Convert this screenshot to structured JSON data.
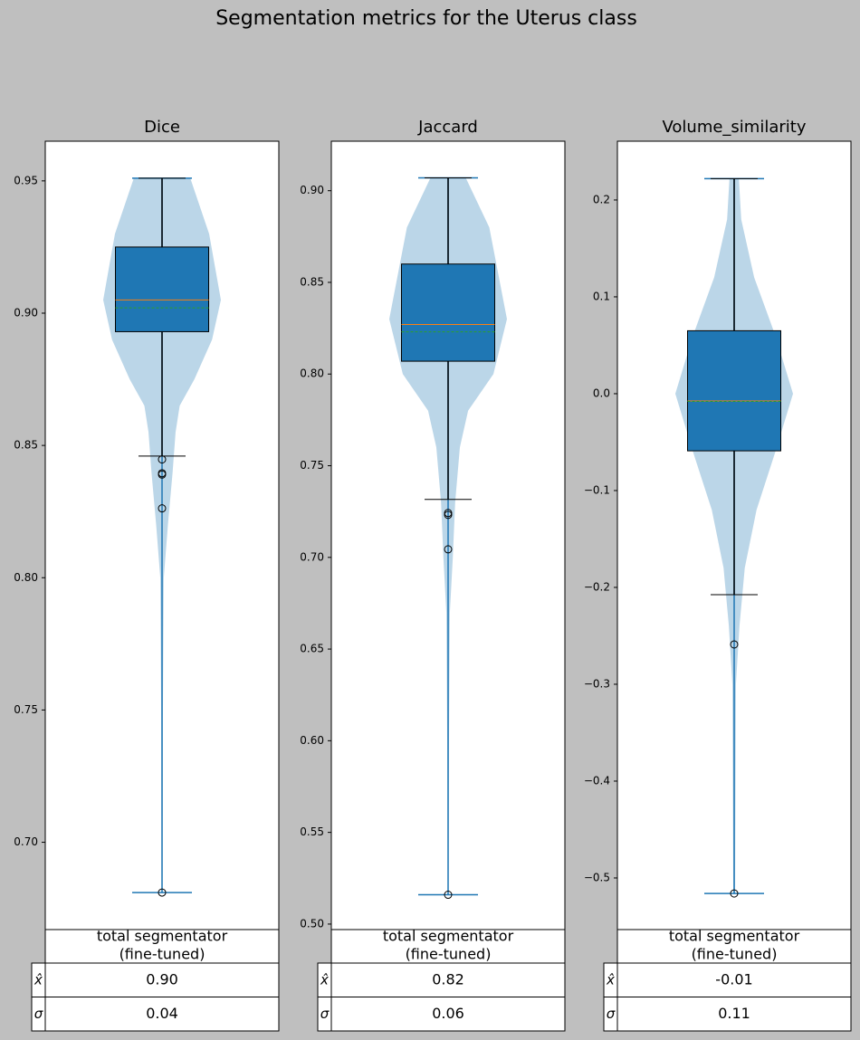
{
  "title": "Segmentation metrics for the Uterus class",
  "chart_data": [
    {
      "type": "violin",
      "title": "Dice",
      "ylim": [
        0.667,
        0.965
      ],
      "yticks": [
        {
          "value": 0.7,
          "label": "0.70"
        },
        0.75,
        {
          "value": 0.8,
          "label": "0.80"
        },
        0.85,
        {
          "value": 0.9,
          "label": "0.90"
        },
        0.95
      ],
      "stats": {
        "min": 0.681,
        "q1": 0.893,
        "median": 0.905,
        "mean": 0.902,
        "q3": 0.925,
        "max": 0.951,
        "whisker_low": 0.846,
        "outliers": [
          0.8447,
          0.8395,
          0.839,
          0.8262,
          0.681
        ]
      },
      "density": {
        "y": [
          0.951,
          0.93,
          0.905,
          0.89,
          0.875,
          0.865,
          0.855,
          0.84,
          0.82,
          0.8,
          0.75,
          0.681
        ],
        "widths": [
          0.48,
          0.8,
          1,
          0.85,
          0.55,
          0.3,
          0.23,
          0.18,
          0.1,
          0.03,
          0.015,
          0.01
        ]
      },
      "color": "#1f77b4",
      "table": {
        "column_label": [
          "total segmentator",
          "(fine-tuned)"
        ],
        "row_labels": [
          "x̂",
          "σ"
        ],
        "cells": [
          "0.90",
          "0.04"
        ]
      }
    },
    {
      "type": "violin",
      "title": "Jaccard",
      "ylim": [
        0.497,
        0.927
      ],
      "yticks": [
        {
          "value": 0.5,
          "label": "0.50"
        },
        0.55,
        {
          "value": 0.6,
          "label": "0.60"
        },
        0.65,
        {
          "value": 0.7,
          "label": "0.70"
        },
        0.75,
        {
          "value": 0.8,
          "label": "0.80"
        },
        0.85,
        {
          "value": 0.9,
          "label": "0.90"
        }
      ],
      "stats": {
        "min": 0.516,
        "q1": 0.807,
        "median": 0.827,
        "mean": 0.823,
        "q3": 0.86,
        "max": 0.907,
        "whisker_low": 0.7316,
        "outliers": [
          0.7242,
          0.7232,
          0.7044,
          0.516
        ]
      },
      "density": {
        "y": [
          0.907,
          0.88,
          0.83,
          0.8,
          0.78,
          0.76,
          0.73,
          0.7,
          0.67,
          0.6,
          0.516
        ],
        "widths": [
          0.3,
          0.7,
          1,
          0.77,
          0.34,
          0.2,
          0.12,
          0.08,
          0.03,
          0.015,
          0.008
        ]
      },
      "color": "#1f77b4",
      "table": {
        "column_label": [
          "total segmentator",
          "(fine-tuned)"
        ],
        "row_labels": [
          "x̂",
          "σ"
        ],
        "cells": [
          "0.82",
          "0.06"
        ]
      }
    },
    {
      "type": "violin",
      "title": "Volume_similarity",
      "ylim": [
        -0.5533,
        0.2607
      ],
      "yticks": [
        {
          "value": -0.5,
          "label": "−0.5"
        },
        {
          "value": -0.4,
          "label": "−0.4"
        },
        {
          "value": -0.3,
          "label": "−0.3"
        },
        {
          "value": -0.2,
          "label": "−0.2"
        },
        {
          "value": -0.1,
          "label": "−0.1"
        },
        {
          "value": 0.0,
          "label": "0.0"
        },
        0.1,
        0.2
      ],
      "stats": {
        "min": -0.516,
        "q1": -0.059,
        "median": -0.0075,
        "mean": -0.008,
        "q3": 0.065,
        "max": 0.222,
        "whisker_low": -0.2075,
        "outliers": [
          -0.2589,
          -0.516
        ]
      },
      "density": {
        "y": [
          0.222,
          0.18,
          0.12,
          0.06,
          0.0,
          -0.06,
          -0.12,
          -0.18,
          -0.24,
          -0.3,
          -0.516
        ],
        "widths": [
          0.08,
          0.12,
          0.34,
          0.7,
          1,
          0.7,
          0.38,
          0.18,
          0.09,
          0.03,
          0.015
        ]
      },
      "color": "#1f77b4",
      "table": {
        "column_label": [
          "total segmentator",
          "(fine-tuned)"
        ],
        "row_labels": [
          "x̂",
          "σ"
        ],
        "cells": [
          "-0.01",
          "0.11"
        ]
      }
    }
  ]
}
